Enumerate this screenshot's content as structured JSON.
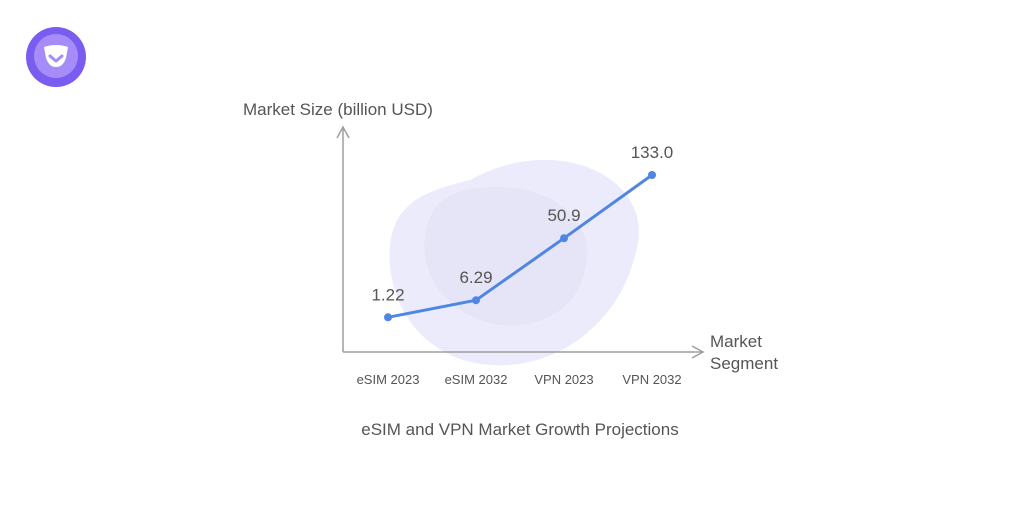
{
  "brand": {
    "logo_icon": "shield-logo-icon",
    "colors": {
      "logo_outer": "#7b5cf0",
      "logo_inner": "#a58cf8",
      "logo_mark": "#ffffff"
    }
  },
  "chart_data": {
    "type": "line",
    "title": "eSIM and VPN Market Growth Projections",
    "ylabel": "Market Size (billion USD)",
    "xlabel": [
      "Market",
      "Segment"
    ],
    "categories": [
      "eSIM 2023",
      "eSIM 2032",
      "VPN 2023",
      "VPN 2032"
    ],
    "series": [
      {
        "name": "Market Size",
        "values": [
          1.22,
          6.29,
          50.9,
          133.0
        ],
        "labels": [
          "1.22",
          "6.29",
          "50.9",
          "133.0"
        ],
        "color": "#4f86e3"
      }
    ],
    "ylim": [
      0,
      133
    ],
    "grid": false,
    "legend": "none",
    "colors": {
      "axis": "#9e9e9e",
      "text": "#555555",
      "blob": "#ecebfb",
      "blob_inner": "#e4e3f7"
    }
  }
}
